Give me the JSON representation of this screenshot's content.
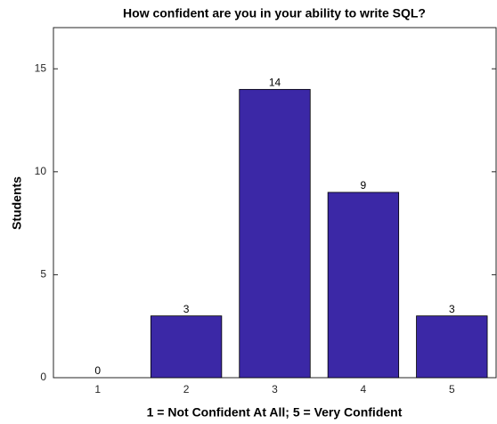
{
  "chart_data": {
    "type": "bar",
    "title": "How confident are you in your ability to write SQL?",
    "x_label": "1 = Not Confident At All; 5 = Very Confident",
    "y_label": "Students",
    "categories": [
      "1",
      "2",
      "3",
      "4",
      "5"
    ],
    "values": [
      0,
      3,
      14,
      9,
      3
    ],
    "color": "#3b28a6",
    "ylim": [
      0,
      17
    ],
    "yticks": [
      0,
      5,
      10,
      15
    ],
    "grid": false
  }
}
